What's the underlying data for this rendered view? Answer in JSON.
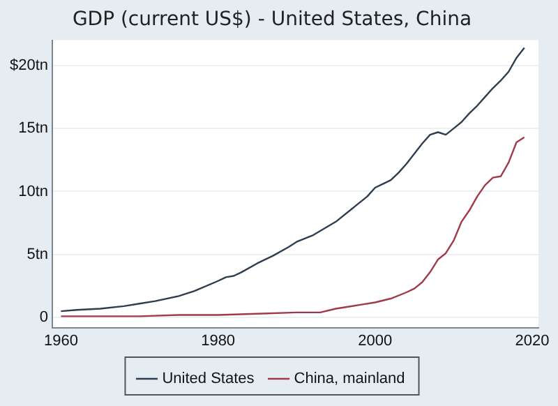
{
  "chart_data": {
    "type": "line",
    "title": "GDP (current US$) - United States, China",
    "series": [
      {
        "name": "United States",
        "color": "#2e3e50",
        "x": [
          1960,
          1962,
          1965,
          1968,
          1970,
          1972,
          1975,
          1977,
          1980,
          1981,
          1982,
          1983,
          1985,
          1987,
          1989,
          1990,
          1992,
          1995,
          1997,
          1999,
          2000,
          2001,
          2002,
          2003,
          2004,
          2005,
          2006,
          2007,
          2008,
          2009,
          2010,
          2011,
          2012,
          2013,
          2014,
          2015,
          2016,
          2017,
          2018,
          2019
        ],
        "values": [
          0.5,
          0.6,
          0.7,
          0.9,
          1.1,
          1.3,
          1.7,
          2.1,
          2.9,
          3.2,
          3.3,
          3.6,
          4.3,
          4.9,
          5.6,
          6.0,
          6.5,
          7.6,
          8.6,
          9.6,
          10.3,
          10.6,
          10.9,
          11.5,
          12.2,
          13.0,
          13.8,
          14.5,
          14.7,
          14.5,
          15.0,
          15.5,
          16.2,
          16.8,
          17.5,
          18.2,
          18.8,
          19.5,
          20.6,
          21.4
        ]
      },
      {
        "name": "China, mainland",
        "color": "#a0394a",
        "x": [
          1960,
          1965,
          1970,
          1975,
          1980,
          1985,
          1990,
          1993,
          1995,
          1998,
          2000,
          2002,
          2004,
          2005,
          2006,
          2007,
          2008,
          2009,
          2010,
          2011,
          2012,
          2013,
          2014,
          2015,
          2016,
          2017,
          2018,
          2019
        ],
        "values": [
          0.1,
          0.1,
          0.1,
          0.2,
          0.2,
          0.3,
          0.4,
          0.4,
          0.7,
          1.0,
          1.2,
          1.5,
          2.0,
          2.3,
          2.8,
          3.6,
          4.6,
          5.1,
          6.1,
          7.6,
          8.5,
          9.6,
          10.5,
          11.1,
          11.2,
          12.3,
          13.9,
          14.3
        ]
      }
    ],
    "xlim": [
      1958.9,
      2020.8
    ],
    "xticks": [
      1960,
      1980,
      2000,
      2020
    ],
    "ylim": [
      -0.8,
      22
    ],
    "yticks": [
      0,
      {
        "value": 5,
        "label": "5tn"
      },
      {
        "value": 10,
        "label": "10tn"
      },
      {
        "value": 15,
        "label": "15tn"
      },
      {
        "value": 20,
        "label": "$20tn"
      }
    ],
    "grid": "y",
    "legend": "bottom"
  }
}
